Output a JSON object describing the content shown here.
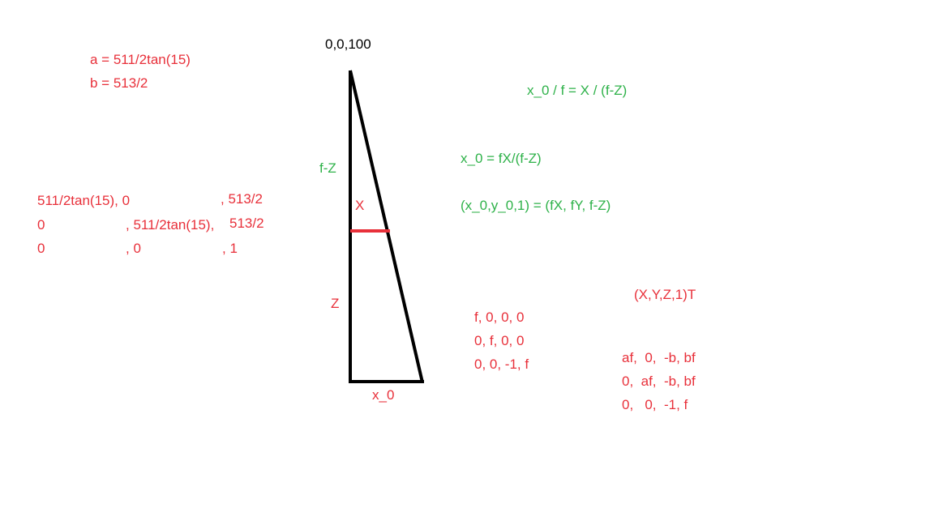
{
  "apex_label": "0,0,100",
  "params": {
    "a_def": "a = 511/2tan(15)",
    "b_def": "b = 513/2"
  },
  "intrinsic_matrix": {
    "r1c1": "511/2tan(15), 0",
    "r1c3": ", 513/2",
    "r2c1": "0",
    "r2c2": ", 511/2tan(15),",
    "r2c3": "513/2",
    "r3c1": "0",
    "r3c2": ", 0",
    "r3c3": ", 1"
  },
  "triangle": {
    "label_fz": "f-Z",
    "label_x": "X",
    "label_z": "Z",
    "label_x0": "x_0"
  },
  "equations": {
    "eq1": "x_0 / f = X / (f-Z)",
    "eq2": "x_0 = fX/(f-Z)",
    "eq3": "(x_0,y_0,1) = (fX, fY, f-Z)"
  },
  "projection_matrix": {
    "row1": "f, 0, 0, 0",
    "row2": "0, f, 0, 0",
    "row3": "0, 0, -1, f"
  },
  "homog_vector": "(X,Y,Z,1)T",
  "result_matrix": {
    "row1": "af,  0,  -b, bf",
    "row2": "0,  af,  -b, bf",
    "row3": "0,   0,  -1, f"
  },
  "colors": {
    "red": "#e8303a",
    "green": "#2fb24a",
    "black": "#000000"
  }
}
